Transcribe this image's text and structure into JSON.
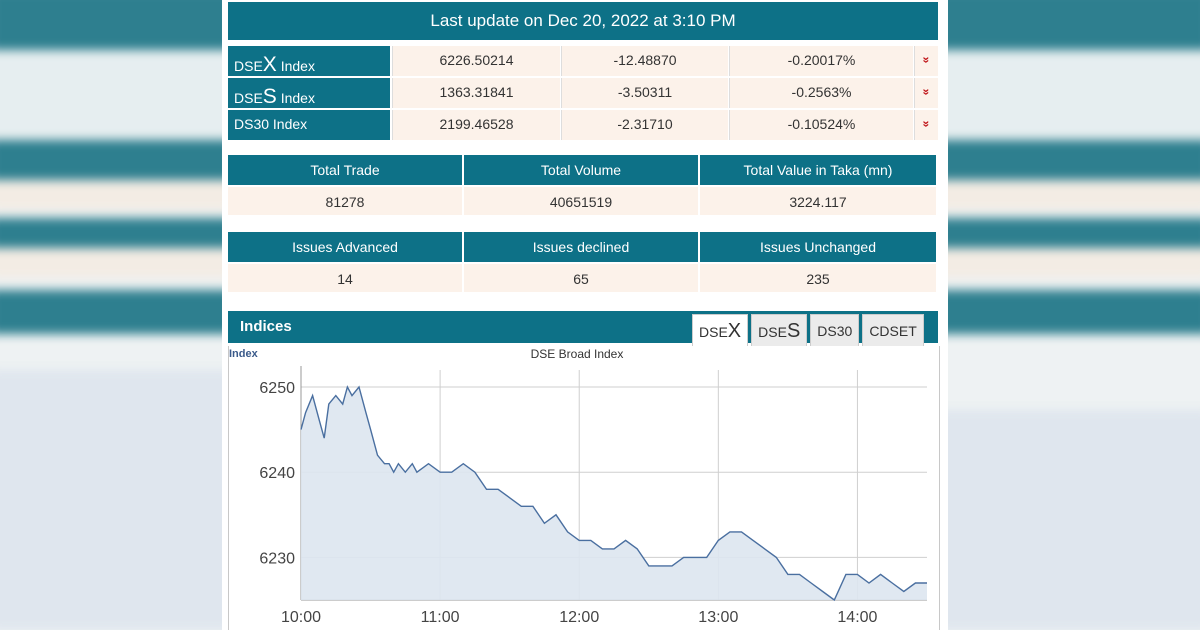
{
  "header": {
    "last_update": "Last update on Dec 20, 2022 at 3:10 PM"
  },
  "indices": [
    {
      "prefix": "DSE",
      "big": "X",
      "suffix": " Index",
      "value": "6226.50214",
      "change": "-12.48870",
      "pct": "-0.20017%",
      "trend_icon": "double-chevron-down-icon",
      "trend_glyph": "»"
    },
    {
      "prefix": "DSE",
      "big": "S",
      "suffix": " Index",
      "value": "1363.31841",
      "change": "-3.50311",
      "pct": "-0.2563%",
      "trend_icon": "double-chevron-down-icon",
      "trend_glyph": "»"
    },
    {
      "prefix": "DS30 Index",
      "big": "",
      "suffix": "",
      "value": "2199.46528",
      "change": "-2.31710",
      "pct": "-0.10524%",
      "trend_icon": "double-chevron-down-icon",
      "trend_glyph": "»"
    }
  ],
  "market_stats": {
    "headers": [
      "Total Trade",
      "Total Volume",
      "Total Value in Taka (mn)"
    ],
    "values": [
      "81278",
      "40651519",
      "3224.117"
    ]
  },
  "issues_stats": {
    "headers": [
      "Issues Advanced",
      "Issues declined",
      "Issues Unchanged"
    ],
    "values": [
      "14",
      "65",
      "235"
    ]
  },
  "indices_section": {
    "title": "Indices",
    "tabs": [
      {
        "prefix": "DSE",
        "big": "X",
        "active": true
      },
      {
        "prefix": "DSE",
        "big": "S",
        "active": false
      },
      {
        "prefix": "DS30",
        "big": "",
        "active": false
      },
      {
        "prefix": "CDSET",
        "big": "",
        "active": false
      }
    ]
  },
  "colors": {
    "teal": "#0d7187",
    "cream": "#fcf2ea",
    "down_red": "#c0161a",
    "line": "#4a6fa0",
    "fill": "#dde6f0"
  },
  "chart_data": {
    "type": "area",
    "title": "DSE Broad Index",
    "ylabel": "Index",
    "xlabel": "",
    "x_ticks": [
      "10:00",
      "11:00",
      "12:00",
      "13:00",
      "14:00"
    ],
    "y_ticks": [
      6230,
      6240,
      6250
    ],
    "ylim": [
      6225,
      6252
    ],
    "xlim": [
      "10:00",
      "14:30"
    ],
    "grid": true,
    "series": [
      {
        "x": [
          "10:00",
          "10:02",
          "10:05",
          "10:08",
          "10:10",
          "10:12",
          "10:15",
          "10:18",
          "10:20",
          "10:22",
          "10:25",
          "10:28",
          "10:30",
          "10:33",
          "10:36",
          "10:38",
          "10:40",
          "10:42",
          "10:45",
          "10:48",
          "10:50",
          "10:55",
          "11:00",
          "11:05",
          "11:10",
          "11:15",
          "11:20",
          "11:25",
          "11:30",
          "11:35",
          "11:40",
          "11:45",
          "11:50",
          "11:55",
          "12:00",
          "12:05",
          "12:10",
          "12:15",
          "12:20",
          "12:25",
          "12:30",
          "12:35",
          "12:40",
          "12:45",
          "12:50",
          "12:55",
          "13:00",
          "13:05",
          "13:10",
          "13:15",
          "13:20",
          "13:25",
          "13:30",
          "13:35",
          "13:40",
          "13:45",
          "13:50",
          "13:55",
          "14:00",
          "14:05",
          "14:10",
          "14:15",
          "14:20",
          "14:25",
          "14:30"
        ],
        "values": [
          6245,
          6247,
          6249,
          6246,
          6244,
          6248,
          6249,
          6248,
          6250,
          6249,
          6250,
          6247,
          6245,
          6242,
          6241,
          6241,
          6240,
          6241,
          6240,
          6241,
          6240,
          6241,
          6240,
          6240,
          6241,
          6240,
          6238,
          6238,
          6237,
          6236,
          6236,
          6234,
          6235,
          6233,
          6232,
          6232,
          6231,
          6231,
          6232,
          6231,
          6229,
          6229,
          6229,
          6230,
          6230,
          6230,
          6232,
          6233,
          6233,
          6232,
          6231,
          6230,
          6228,
          6228,
          6227,
          6226,
          6225,
          6228,
          6228,
          6227,
          6228,
          6227,
          6226,
          6227,
          6227
        ]
      }
    ]
  }
}
